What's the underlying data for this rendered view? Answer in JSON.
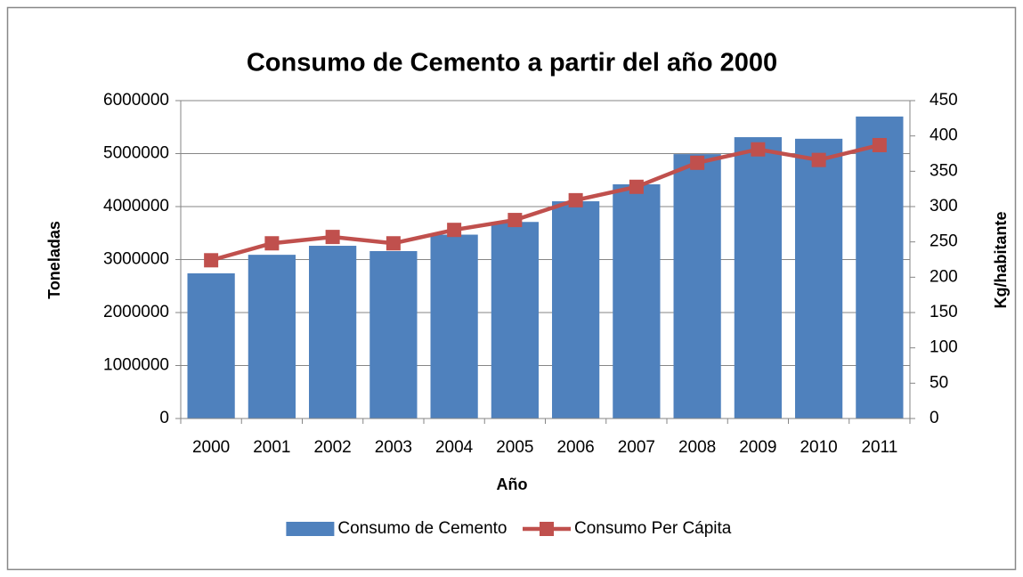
{
  "chart_data": {
    "type": "bar-line",
    "title": "Consumo de Cemento a partir del año 2000",
    "x_label": "Año",
    "y_label": "Toneladas",
    "y2_label": "Kg/habitante",
    "categories": [
      "2000",
      "2001",
      "2002",
      "2003",
      "2004",
      "2005",
      "2006",
      "2007",
      "2008",
      "2009",
      "2010",
      "2011"
    ],
    "series": [
      {
        "name": "Consumo de Cemento",
        "type": "bar",
        "color": "#4f81bd",
        "values": [
          2740000,
          3090000,
          3260000,
          3160000,
          3470000,
          3710000,
          4100000,
          4420000,
          4990000,
          5310000,
          5280000,
          5700000
        ]
      },
      {
        "name": "Consumo Per Cápita",
        "type": "line",
        "axis": "y2",
        "color": "#c0504d",
        "values": [
          224,
          248,
          257,
          248,
          267,
          281,
          309,
          328,
          362,
          381,
          366,
          387
        ]
      }
    ],
    "ylim": [
      0,
      6000000
    ],
    "yticks": [
      0,
      1000000,
      2000000,
      3000000,
      4000000,
      5000000,
      6000000
    ],
    "y2lim": [
      0,
      450
    ],
    "y2ticks": [
      0,
      50,
      100,
      150,
      200,
      250,
      300,
      350,
      400,
      450
    ],
    "grid": true,
    "legend": "bottom"
  }
}
